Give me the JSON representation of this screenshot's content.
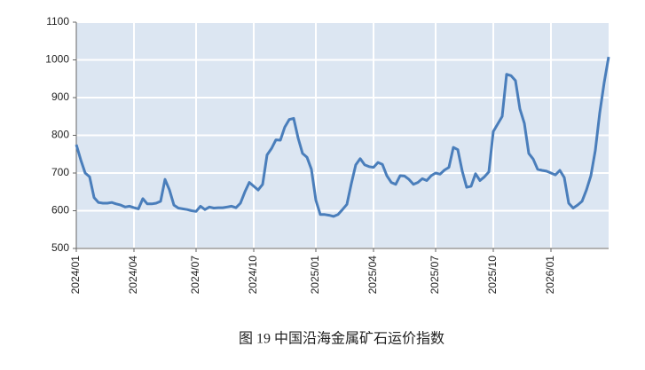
{
  "chart_data": {
    "type": "line",
    "title": "图 19 中国沿海金属矿石运价指数",
    "categories": [
      "2024/01",
      null,
      null,
      null,
      null,
      null,
      null,
      null,
      null,
      null,
      null,
      null,
      null,
      "2024/04",
      null,
      null,
      null,
      null,
      null,
      null,
      null,
      null,
      null,
      null,
      null,
      null,
      null,
      "2024/07",
      null,
      null,
      null,
      null,
      null,
      null,
      null,
      null,
      null,
      null,
      null,
      null,
      "2024/10",
      null,
      null,
      null,
      null,
      null,
      null,
      null,
      null,
      null,
      null,
      null,
      null,
      null,
      "2025/01",
      null,
      null,
      null,
      null,
      null,
      null,
      null,
      null,
      null,
      null,
      null,
      null,
      "2025/04",
      null,
      null,
      null,
      null,
      null,
      null,
      null,
      null,
      null,
      null,
      null,
      null,
      null,
      "2025/07",
      null,
      null,
      null,
      null,
      null,
      null,
      null,
      null,
      null,
      null,
      null,
      null,
      "2025/10",
      null,
      null,
      null,
      null,
      null,
      null,
      null,
      null,
      null,
      null,
      null,
      null,
      "2026/01",
      null,
      null,
      null,
      null,
      null,
      null,
      null,
      null,
      null,
      null,
      null,
      null,
      null
    ],
    "series": [
      {
        "name": "中国沿海金属矿石运价指数",
        "color": "#4a7ebb",
        "values": [
          775,
          735,
          700,
          690,
          635,
          622,
          620,
          620,
          622,
          618,
          615,
          610,
          612,
          608,
          605,
          632,
          618,
          618,
          620,
          625,
          683,
          655,
          615,
          607,
          605,
          603,
          600,
          598,
          612,
          603,
          610,
          607,
          608,
          608,
          610,
          612,
          608,
          620,
          650,
          675,
          665,
          655,
          670,
          748,
          765,
          788,
          787,
          822,
          842,
          845,
          793,
          752,
          742,
          710,
          628,
          590,
          590,
          588,
          585,
          590,
          603,
          617,
          672,
          722,
          738,
          722,
          717,
          715,
          728,
          723,
          693,
          675,
          670,
          693,
          692,
          683,
          670,
          675,
          685,
          680,
          693,
          700,
          697,
          708,
          715,
          768,
          762,
          705,
          662,
          665,
          698,
          680,
          690,
          703,
          810,
          830,
          850,
          962,
          958,
          945,
          870,
          832,
          752,
          737,
          710,
          707,
          705,
          700,
          695,
          707,
          688,
          620,
          607,
          615,
          625,
          655,
          693,
          760,
          860,
          940,
          1008
        ]
      }
    ],
    "ylim": [
      500,
      1100
    ],
    "yticks": [
      500,
      600,
      700,
      800,
      900,
      1000,
      1100
    ],
    "grid": true
  }
}
